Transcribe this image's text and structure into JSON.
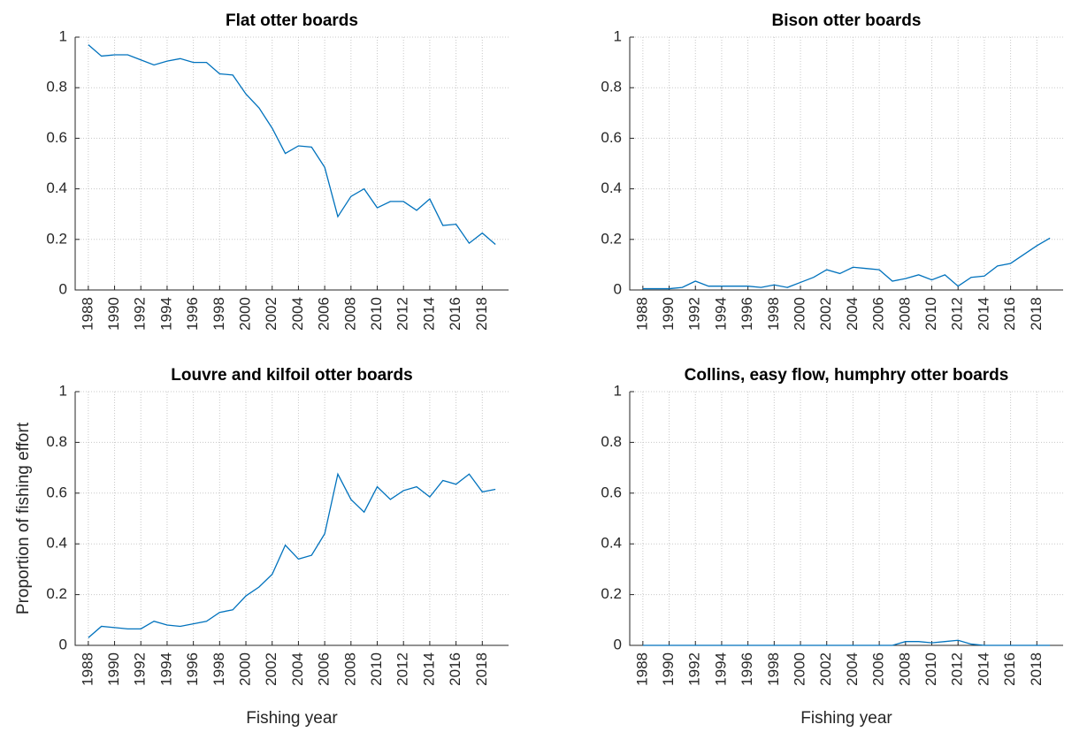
{
  "chart_data": [
    {
      "type": "line",
      "title": "Flat otter boards",
      "x": [
        1988,
        1989,
        1990,
        1991,
        1992,
        1993,
        1994,
        1995,
        1996,
        1997,
        1998,
        1999,
        2000,
        2001,
        2002,
        2003,
        2004,
        2005,
        2006,
        2007,
        2008,
        2009,
        2010,
        2011,
        2012,
        2013,
        2014,
        2015,
        2016,
        2017,
        2018,
        2019
      ],
      "series": [
        {
          "color": "#0072bd",
          "values": [
            0.97,
            0.925,
            0.93,
            0.93,
            0.91,
            0.89,
            0.905,
            0.915,
            0.9,
            0.9,
            0.855,
            0.85,
            0.775,
            0.72,
            0.64,
            0.54,
            0.57,
            0.565,
            0.485,
            0.29,
            0.37,
            0.4,
            0.325,
            0.35,
            0.35,
            0.315,
            0.36,
            0.255,
            0.26,
            0.185,
            0.225,
            0.18
          ]
        }
      ],
      "xlim": [
        1987,
        2020
      ],
      "xticks": [
        1988,
        1990,
        1992,
        1994,
        1996,
        1998,
        2000,
        2002,
        2004,
        2006,
        2008,
        2010,
        2012,
        2014,
        2016,
        2018
      ],
      "ylim": [
        0,
        1
      ],
      "yticks": [
        0,
        0.2,
        0.4,
        0.6,
        0.8,
        1
      ],
      "grid": true
    },
    {
      "type": "line",
      "title": "Bison otter boards",
      "x": [
        1988,
        1989,
        1990,
        1991,
        1992,
        1993,
        1994,
        1995,
        1996,
        1997,
        1998,
        1999,
        2000,
        2001,
        2002,
        2003,
        2004,
        2005,
        2006,
        2007,
        2008,
        2009,
        2010,
        2011,
        2012,
        2013,
        2014,
        2015,
        2016,
        2017,
        2018,
        2019
      ],
      "series": [
        {
          "color": "#0072bd",
          "values": [
            0.005,
            0.005,
            0.005,
            0.01,
            0.035,
            0.015,
            0.015,
            0.015,
            0.015,
            0.01,
            0.02,
            0.01,
            0.03,
            0.05,
            0.08,
            0.065,
            0.09,
            0.085,
            0.08,
            0.035,
            0.045,
            0.06,
            0.04,
            0.06,
            0.015,
            0.05,
            0.055,
            0.095,
            0.105,
            0.14,
            0.175,
            0.205
          ]
        }
      ],
      "xlim": [
        1987,
        2020
      ],
      "xticks": [
        1988,
        1990,
        1992,
        1994,
        1996,
        1998,
        2000,
        2002,
        2004,
        2006,
        2008,
        2010,
        2012,
        2014,
        2016,
        2018
      ],
      "ylim": [
        0,
        1
      ],
      "yticks": [
        0,
        0.2,
        0.4,
        0.6,
        0.8,
        1
      ],
      "grid": true
    },
    {
      "type": "line",
      "title": "Louvre and kilfoil otter boards",
      "xlabel": "Fishing year",
      "ylabel": "Proportion of fishing effort",
      "x": [
        1988,
        1989,
        1990,
        1991,
        1992,
        1993,
        1994,
        1995,
        1996,
        1997,
        1998,
        1999,
        2000,
        2001,
        2002,
        2003,
        2004,
        2005,
        2006,
        2007,
        2008,
        2009,
        2010,
        2011,
        2012,
        2013,
        2014,
        2015,
        2016,
        2017,
        2018,
        2019
      ],
      "series": [
        {
          "color": "#0072bd",
          "values": [
            0.03,
            0.075,
            0.07,
            0.065,
            0.065,
            0.095,
            0.08,
            0.075,
            0.085,
            0.095,
            0.13,
            0.14,
            0.195,
            0.23,
            0.28,
            0.395,
            0.34,
            0.355,
            0.44,
            0.675,
            0.575,
            0.525,
            0.625,
            0.575,
            0.61,
            0.625,
            0.585,
            0.65,
            0.635,
            0.675,
            0.605,
            0.615
          ]
        }
      ],
      "xlim": [
        1987,
        2020
      ],
      "xticks": [
        1988,
        1990,
        1992,
        1994,
        1996,
        1998,
        2000,
        2002,
        2004,
        2006,
        2008,
        2010,
        2012,
        2014,
        2016,
        2018
      ],
      "ylim": [
        0,
        1
      ],
      "yticks": [
        0,
        0.2,
        0.4,
        0.6,
        0.8,
        1
      ],
      "grid": true
    },
    {
      "type": "line",
      "title": "Collins, easy flow, humphry otter boards",
      "xlabel": "Fishing year",
      "x": [
        1988,
        1989,
        1990,
        1991,
        1992,
        1993,
        1994,
        1995,
        1996,
        1997,
        1998,
        1999,
        2000,
        2001,
        2002,
        2003,
        2004,
        2005,
        2006,
        2007,
        2008,
        2009,
        2010,
        2011,
        2012,
        2013,
        2014,
        2015,
        2016,
        2017,
        2018,
        2019
      ],
      "series": [
        {
          "color": "#0072bd",
          "values": [
            0,
            0,
            0,
            0,
            0,
            0,
            0,
            0,
            0,
            0,
            0,
            0,
            0,
            0,
            0,
            0,
            0,
            0,
            0,
            0,
            0.015,
            0.015,
            0.01,
            0.015,
            0.02,
            0.005,
            0,
            0,
            0,
            0,
            0,
            0
          ]
        }
      ],
      "xlim": [
        1987,
        2020
      ],
      "xticks": [
        1988,
        1990,
        1992,
        1994,
        1996,
        1998,
        2000,
        2002,
        2004,
        2006,
        2008,
        2010,
        2012,
        2014,
        2016,
        2018
      ],
      "ylim": [
        0,
        1
      ],
      "yticks": [
        0,
        0.2,
        0.4,
        0.6,
        0.8,
        1
      ],
      "grid": true
    }
  ]
}
